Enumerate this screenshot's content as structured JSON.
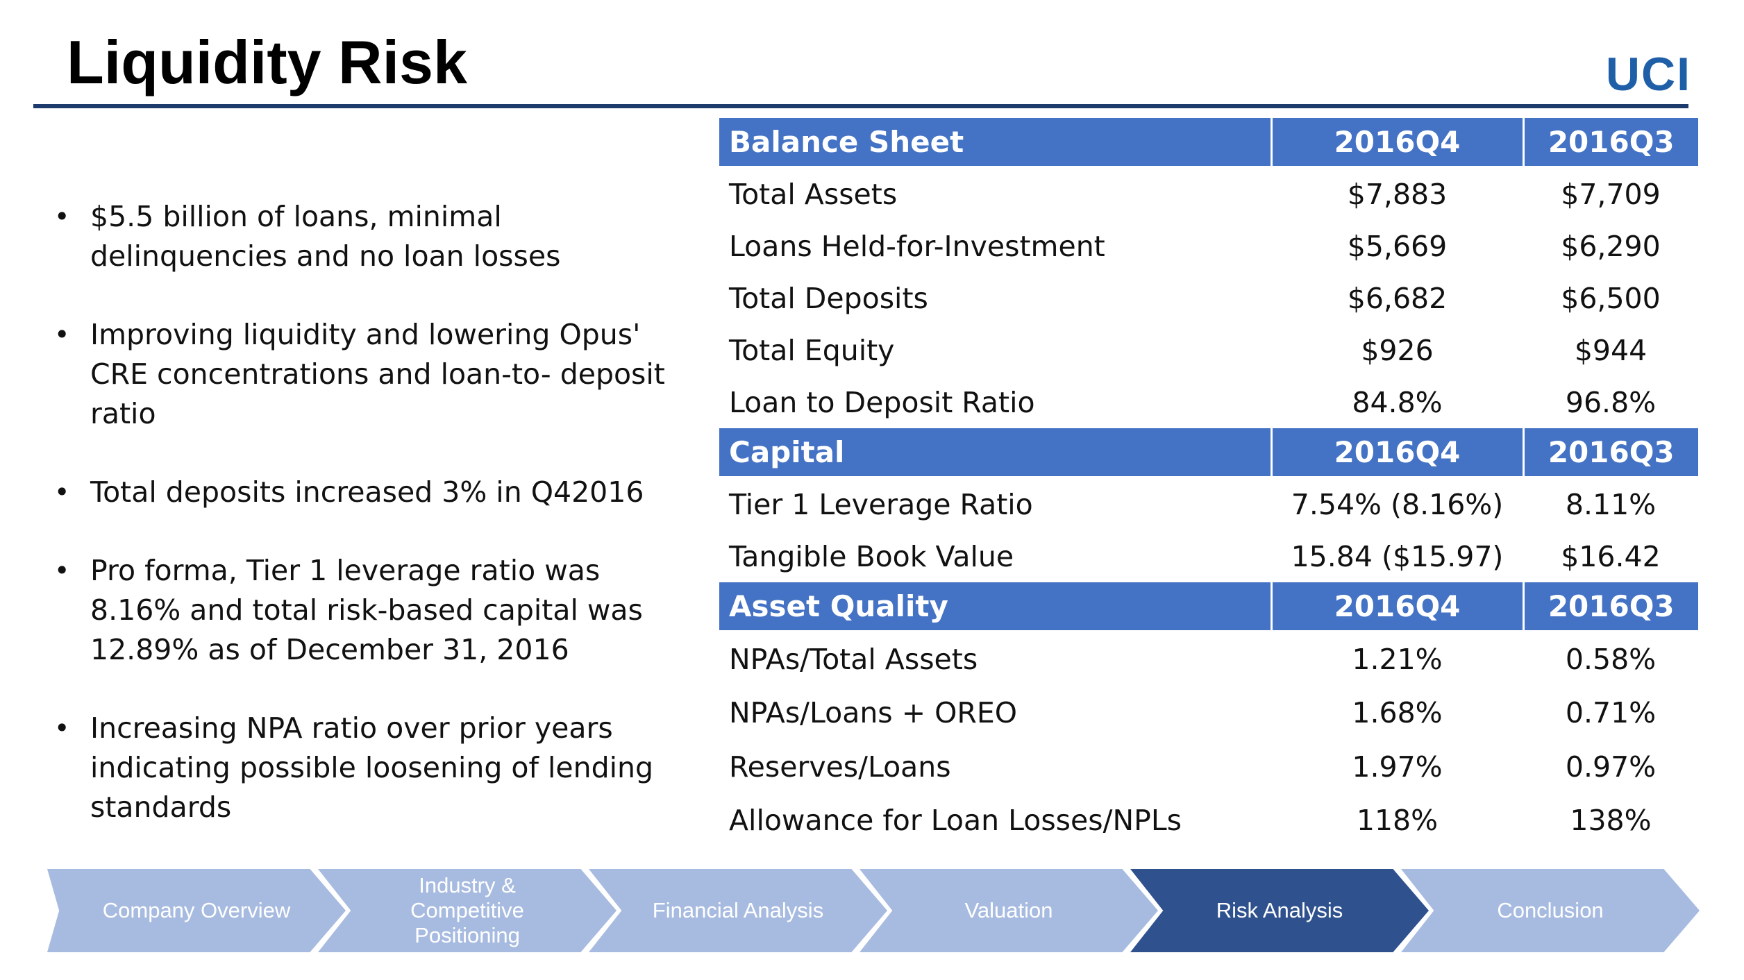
{
  "title": "Liquidity Risk",
  "logo": "UCI",
  "bullets": [
    "$5.5 billion of loans, minimal delinquencies and no loan losses",
    "Improving liquidity and lowering Opus' CRE concentrations and loan-to- deposit ratio",
    "Total deposits increased 3% in Q42016",
    "Pro forma, Tier 1 leverage ratio was 8.16% and total risk-based capital was 12.89% as of December 31, 2016",
    "Increasing NPA ratio over prior years indicating possible loosening of lending standards"
  ],
  "balance_sheet": {
    "header": [
      "Balance Sheet",
      "2016Q4",
      "2016Q3"
    ],
    "rows": [
      [
        "Total Assets",
        "$7,883",
        "$7,709"
      ],
      [
        "Loans Held-for-Investment",
        "$5,669",
        "$6,290"
      ],
      [
        "Total Deposits",
        "$6,682",
        "$6,500"
      ],
      [
        "Total Equity",
        "$926",
        "$944"
      ],
      [
        "Loan to Deposit Ratio",
        "84.8%",
        "96.8%"
      ]
    ]
  },
  "capital": {
    "header": [
      "Capital",
      "2016Q4",
      "2016Q3"
    ],
    "rows": [
      [
        "Tier 1 Leverage Ratio",
        "7.54% (8.16%)",
        "8.11%"
      ],
      [
        "Tangible Book Value",
        "15.84 ($15.97)",
        "$16.42"
      ]
    ]
  },
  "asset_quality": {
    "header": [
      "Asset Quality",
      "2016Q4",
      "2016Q3"
    ],
    "rows": [
      [
        "NPAs/Total Assets",
        "1.21%",
        "0.58%"
      ],
      [
        "NPAs/Loans + OREO",
        "1.68%",
        "0.71%"
      ],
      [
        "Reserves/Loans",
        "1.97%",
        "0.97%"
      ],
      [
        "Allowance for Loan Losses/NPLs",
        "118%",
        "138%"
      ]
    ]
  },
  "nav": {
    "items": [
      "Company Overview",
      "Industry & Competitive Positioning",
      "Financial Analysis",
      "Valuation",
      "Risk Analysis",
      "Conclusion"
    ],
    "active_index": 4
  },
  "colors": {
    "header_blue": "#4472c4",
    "rule_navy": "#1c3a6b",
    "logo_blue": "#1f5fa8",
    "chevron_light": "#a7bbe0",
    "chevron_active": "#2f528f"
  }
}
